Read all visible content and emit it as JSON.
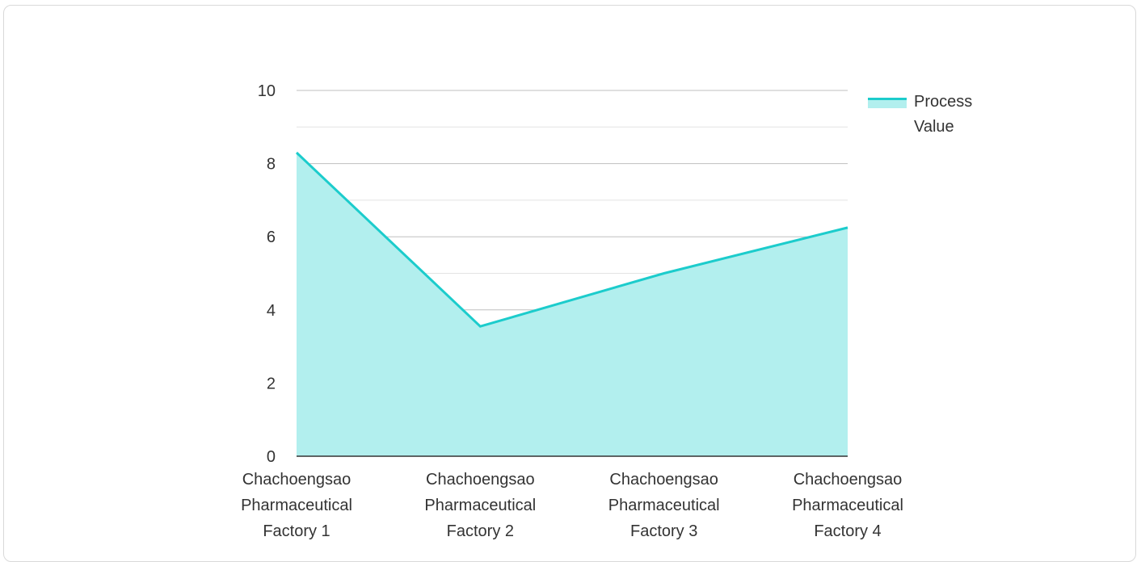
{
  "chart_data": {
    "type": "area",
    "categories": [
      [
        "Chachoengsao",
        "Pharmaceutical",
        "Factory 1"
      ],
      [
        "Chachoengsao",
        "Pharmaceutical",
        "Factory 2"
      ],
      [
        "Chachoengsao",
        "Pharmaceutical",
        "Factory 3"
      ],
      [
        "Chachoengsao",
        "Pharmaceutical",
        "Factory 4"
      ]
    ],
    "series": [
      {
        "name": [
          "Process",
          "Value"
        ],
        "values": [
          8.3,
          3.55,
          5.0,
          6.25
        ],
        "line_color": "#1ccccc",
        "fill_color": "#b2efee"
      }
    ],
    "ylim": [
      0,
      10
    ],
    "yticks": [
      "0",
      "2",
      "4",
      "6",
      "8",
      "10"
    ],
    "grid": true,
    "legend_position": "top-right",
    "title": "",
    "xlabel": "",
    "ylabel": ""
  }
}
